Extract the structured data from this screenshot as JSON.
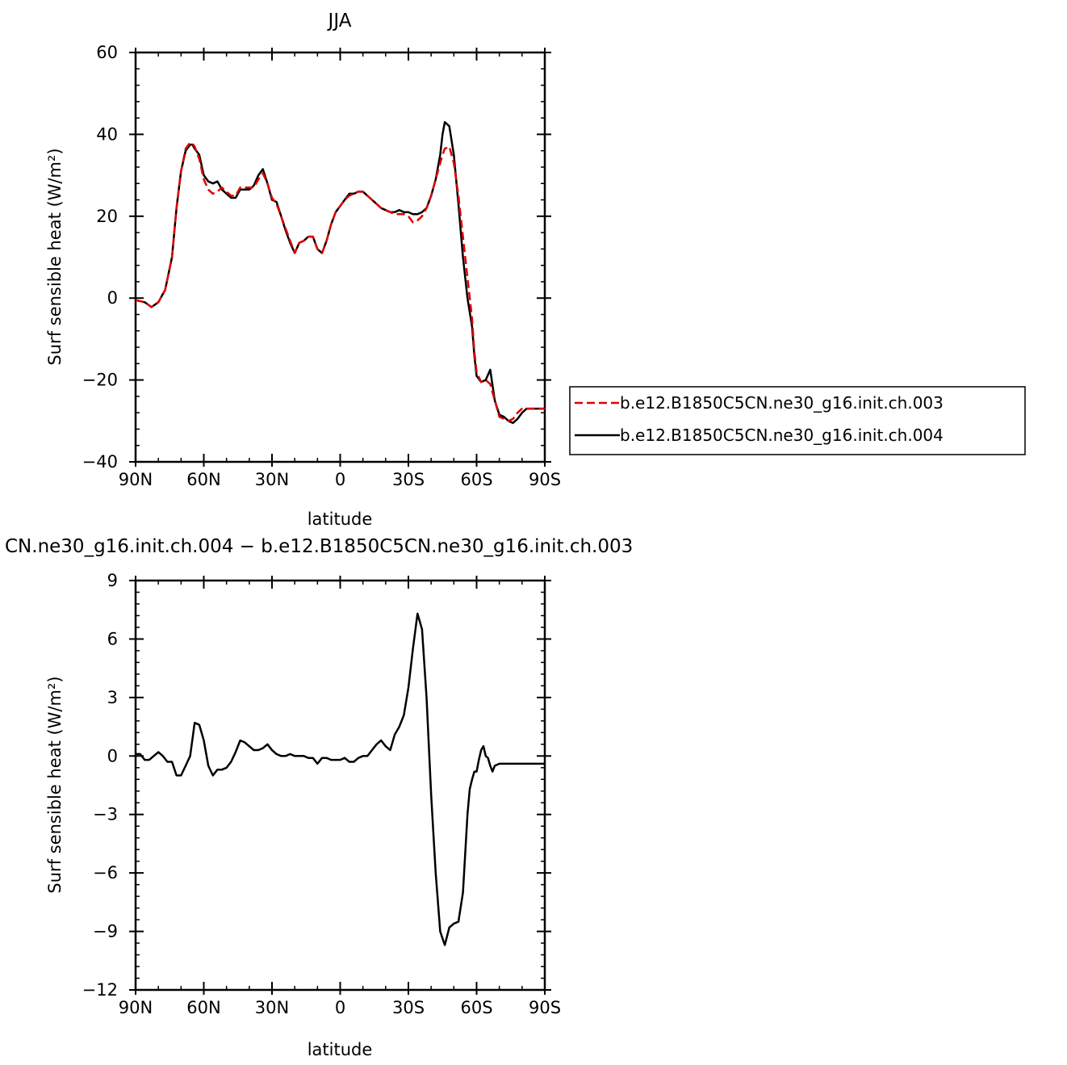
{
  "chart_data": [
    {
      "type": "line",
      "title": "JJA",
      "xlabel": "latitude",
      "ylabel": "Surf sensible heat (W/m²)",
      "xlim": [
        90,
        -90
      ],
      "ylim": [
        -40,
        60
      ],
      "x_ticks": [
        90,
        60,
        30,
        0,
        -30,
        -60,
        -90
      ],
      "x_tick_labels": [
        "90N",
        "60N",
        "30N",
        "0",
        "30S",
        "60S",
        "90S"
      ],
      "y_ticks": [
        -40,
        -20,
        0,
        20,
        40,
        60
      ],
      "y_tick_labels": [
        "−40",
        "−20",
        "0",
        "20",
        "40",
        "60"
      ],
      "legend_position": "right",
      "series": [
        {
          "name": "b.e12.B1850C5CN.ne30_g16.init.ch.003",
          "color": "#e00000",
          "dash": "dashed",
          "x": [
            90,
            86,
            83,
            80,
            77,
            74,
            72,
            70,
            68,
            66,
            65,
            64,
            62,
            60,
            58,
            56,
            54,
            52,
            50,
            48,
            46,
            44,
            42,
            40,
            38,
            36,
            34,
            32,
            30,
            28,
            26,
            24,
            22,
            20,
            18,
            16,
            14,
            12,
            10,
            8,
            6,
            4,
            2,
            0,
            -2,
            -4,
            -6,
            -8,
            -10,
            -12,
            -14,
            -16,
            -18,
            -20,
            -22,
            -24,
            -26,
            -28,
            -30,
            -32,
            -34,
            -36,
            -38,
            -40,
            -42,
            -44,
            -45,
            -46,
            -48,
            -50,
            -52,
            -54,
            -56,
            -58,
            -59,
            -60,
            -62,
            -64,
            -66,
            -68,
            -70,
            -72,
            -74,
            -76,
            -78,
            -80,
            -82,
            -84,
            -86,
            -88,
            -90
          ],
          "y": [
            -0.5,
            -1.0,
            -2.2,
            -1.0,
            2.0,
            10.0,
            22.0,
            31.0,
            36.5,
            38.0,
            37.8,
            37.0,
            34.0,
            29.0,
            26.5,
            25.5,
            26.0,
            27.0,
            26.0,
            25.0,
            25.0,
            27.0,
            27.0,
            27.0,
            27.0,
            29.0,
            30.5,
            28.0,
            24.5,
            23.0,
            20.0,
            17.0,
            14.0,
            11.0,
            13.5,
            14.0,
            15.0,
            15.0,
            12.0,
            11.0,
            14.0,
            18.0,
            21.0,
            22.5,
            24.0,
            25.0,
            25.5,
            26.0,
            26.0,
            25.0,
            24.0,
            23.0,
            22.0,
            21.5,
            21.0,
            20.5,
            20.5,
            20.5,
            20.0,
            18.5,
            19.0,
            20.0,
            22.0,
            25.0,
            29.0,
            33.0,
            35.0,
            36.5,
            37.0,
            33.0,
            25.0,
            15.0,
            5.0,
            -5.0,
            -13.0,
            -18.0,
            -20.5,
            -20.0,
            -21.0,
            -25.0,
            -29.0,
            -29.5,
            -30.0,
            -29.5,
            -28.0,
            -27.0,
            -27.0,
            -27.0,
            -27.0,
            -27.0,
            -27.0
          ]
        },
        {
          "name": "b.e12.B1850C5CN.ne30_g16.init.ch.004",
          "color": "#000000",
          "dash": "solid",
          "x": [
            90,
            86,
            83,
            80,
            77,
            74,
            72,
            70,
            68,
            66,
            65,
            64,
            62,
            60,
            58,
            56,
            54,
            52,
            50,
            48,
            46,
            44,
            42,
            40,
            38,
            36,
            34,
            32,
            30,
            28,
            26,
            24,
            22,
            20,
            18,
            16,
            14,
            12,
            10,
            8,
            6,
            4,
            2,
            0,
            -2,
            -4,
            -6,
            -8,
            -10,
            -12,
            -14,
            -16,
            -18,
            -20,
            -22,
            -24,
            -26,
            -28,
            -30,
            -32,
            -34,
            -36,
            -38,
            -40,
            -42,
            -44,
            -45,
            -46,
            -48,
            -50,
            -52,
            -54,
            -56,
            -58,
            -59,
            -60,
            -62,
            -64,
            -66,
            -68,
            -70,
            -72,
            -74,
            -76,
            -78,
            -80,
            -82,
            -84,
            -86,
            -88,
            -90
          ],
          "y": [
            -0.5,
            -1.0,
            -2.2,
            -1.0,
            2.0,
            10.0,
            22.0,
            31.0,
            36.0,
            37.5,
            37.5,
            36.5,
            35.0,
            30.0,
            28.5,
            28.0,
            28.5,
            26.5,
            25.5,
            24.5,
            24.5,
            26.5,
            26.5,
            26.5,
            27.5,
            30.0,
            31.5,
            28.0,
            24.0,
            23.5,
            20.0,
            16.5,
            13.5,
            11.0,
            13.5,
            14.0,
            15.0,
            15.0,
            12.0,
            11.0,
            14.0,
            18.0,
            21.0,
            22.5,
            24.0,
            25.5,
            25.5,
            26.0,
            26.0,
            25.0,
            24.0,
            23.0,
            22.0,
            21.5,
            21.0,
            21.0,
            21.5,
            21.0,
            21.0,
            20.5,
            20.5,
            21.0,
            22.0,
            25.0,
            29.0,
            35.0,
            40.0,
            43.0,
            42.0,
            35.0,
            23.0,
            10.0,
            0.0,
            -7.0,
            -14.0,
            -19.0,
            -20.5,
            -20.0,
            -17.5,
            -25.0,
            -28.5,
            -29.0,
            -30.0,
            -30.5,
            -29.5,
            -28.0,
            -27.0,
            -27.0,
            -27.0,
            -27.0,
            -27.0
          ]
        }
      ]
    },
    {
      "type": "line",
      "title": "CN.ne30_g16.init.ch.004 − b.e12.B1850C5CN.ne30_g16.init.ch.003",
      "xlabel": "latitude",
      "ylabel": "Surf sensible heat (W/m²)",
      "xlim": [
        90,
        -90
      ],
      "ylim": [
        -12,
        9
      ],
      "x_ticks": [
        90,
        60,
        30,
        0,
        -30,
        -60,
        -90
      ],
      "x_tick_labels": [
        "90N",
        "60N",
        "30N",
        "0",
        "30S",
        "60S",
        "90S"
      ],
      "y_ticks": [
        -12,
        -9,
        -6,
        -3,
        0,
        3,
        6,
        9
      ],
      "y_tick_labels": [
        "−12",
        "−9",
        "−6",
        "−3",
        "0",
        "3",
        "6",
        "9"
      ],
      "series": [
        {
          "color": "#000000",
          "dash": "solid",
          "x": [
            90,
            88,
            86,
            84,
            82,
            80,
            78,
            76,
            74,
            72,
            70,
            68,
            66,
            64,
            62,
            60,
            58,
            56,
            54,
            52,
            50,
            48,
            46,
            44,
            42,
            40,
            38,
            36,
            34,
            32,
            30,
            28,
            26,
            24,
            22,
            20,
            18,
            16,
            14,
            12,
            10,
            8,
            6,
            4,
            2,
            0,
            -2,
            -4,
            -6,
            -8,
            -10,
            -12,
            -14,
            -16,
            -18,
            -20,
            -22,
            -24,
            -26,
            -28,
            -30,
            -32,
            -34,
            -36,
            -38,
            -40,
            -42,
            -44,
            -46,
            -48,
            -50,
            -52,
            -54,
            -55,
            -56,
            -57,
            -58,
            -59,
            -60,
            -61,
            -62,
            -63,
            -64,
            -65,
            -66,
            -67,
            -68,
            -70,
            -72,
            -74,
            -76,
            -78,
            -80,
            -82,
            -84,
            -86,
            -88,
            -90
          ],
          "y": [
            0.1,
            0.1,
            -0.2,
            -0.2,
            0.0,
            0.2,
            0.0,
            -0.3,
            -0.3,
            -1.0,
            -1.0,
            -0.5,
            0.0,
            1.7,
            1.6,
            0.8,
            -0.5,
            -1.0,
            -0.7,
            -0.7,
            -0.6,
            -0.3,
            0.2,
            0.8,
            0.7,
            0.5,
            0.3,
            0.3,
            0.4,
            0.6,
            0.3,
            0.1,
            0.0,
            0.0,
            0.1,
            0.0,
            0.0,
            0.0,
            -0.1,
            -0.1,
            -0.4,
            -0.1,
            -0.1,
            -0.2,
            -0.2,
            -0.2,
            -0.1,
            -0.3,
            -0.3,
            -0.1,
            0.0,
            0.0,
            0.3,
            0.6,
            0.8,
            0.5,
            0.3,
            1.1,
            1.5,
            2.1,
            3.5,
            5.5,
            7.3,
            6.5,
            3.0,
            -2.0,
            -6.0,
            -9.0,
            -9.7,
            -8.8,
            -8.6,
            -8.5,
            -7.0,
            -5.0,
            -3.0,
            -1.7,
            -1.2,
            -0.8,
            -0.8,
            -0.2,
            0.3,
            0.5,
            0.0,
            -0.1,
            -0.5,
            -0.8,
            -0.5,
            -0.4,
            -0.4,
            -0.4,
            -0.4,
            -0.4,
            -0.4,
            -0.4,
            -0.4,
            -0.4,
            -0.4,
            -0.4
          ]
        }
      ]
    }
  ]
}
